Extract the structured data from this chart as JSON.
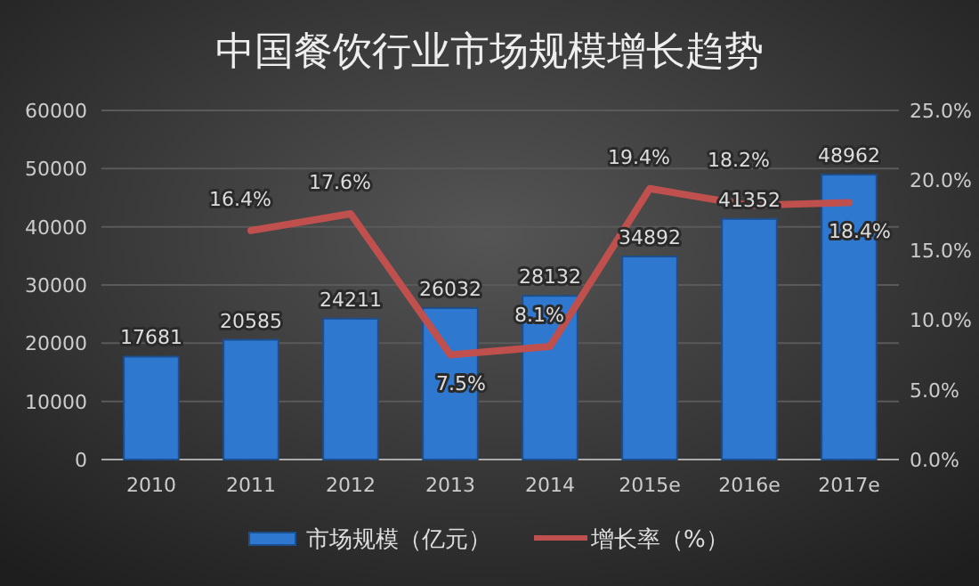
{
  "chart_data": {
    "type": "bar",
    "title": "中国餐饮行业市场规模增长趋势",
    "categories": [
      "2010",
      "2011",
      "2012",
      "2013",
      "2014",
      "2015e",
      "2016e",
      "2017e"
    ],
    "series": [
      {
        "name": "市场规模（亿元）",
        "color": "#2f78d0",
        "values": [
          17681,
          20585,
          24211,
          26032,
          28132,
          34892,
          41352,
          48962
        ],
        "value_labels": [
          "17681",
          "20585",
          "24211",
          "26032",
          "28132",
          "34892",
          "41352",
          "48962"
        ]
      },
      {
        "name": "增长率（%）",
        "type": "line",
        "axis": "y2",
        "color": "#c0504d",
        "values": [
          null,
          16.4,
          17.6,
          7.5,
          8.1,
          19.4,
          18.2,
          18.4
        ],
        "value_labels": [
          null,
          "16.4%",
          "17.6%",
          "7.5%",
          "8.1%",
          "19.4%",
          "18.2%",
          "18.4%"
        ]
      }
    ],
    "ylim": [
      0,
      60000
    ],
    "yticks": [
      0,
      10000,
      20000,
      30000,
      40000,
      50000,
      60000
    ],
    "y2lim": [
      0,
      25
    ],
    "y2ticks": [
      {
        "value": 0,
        "label": "0.0%"
      },
      {
        "value": 5,
        "label": "5.0%"
      },
      {
        "value": 10,
        "label": "10.0%"
      },
      {
        "value": 15,
        "label": "15.0%"
      },
      {
        "value": 20,
        "label": "20.0%"
      },
      {
        "value": 25,
        "label": "25.0%"
      }
    ],
    "grid": "y",
    "legend": "bottom",
    "marker": "none",
    "line_style": "solid"
  }
}
